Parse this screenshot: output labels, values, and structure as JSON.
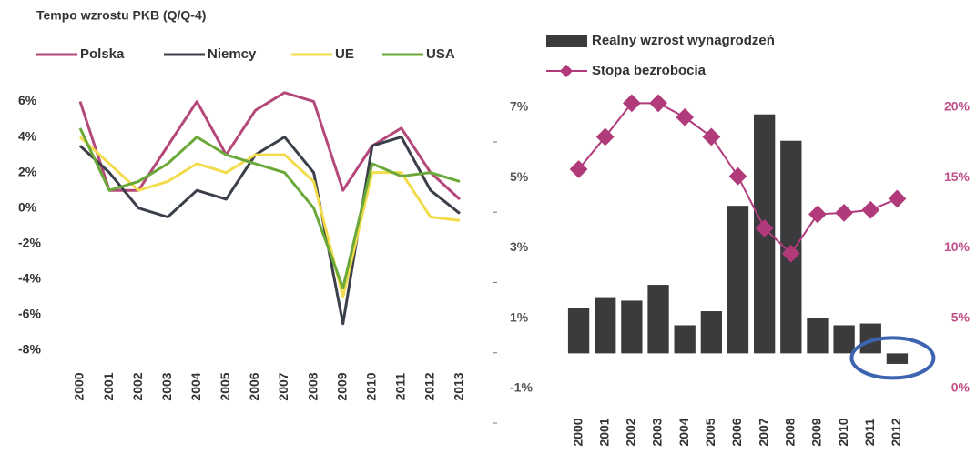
{
  "chart_data": [
    {
      "type": "line",
      "title": "Tempo wzrostu PKB (Q/Q-4)",
      "categories": [
        "2000",
        "2001",
        "2002",
        "2003",
        "2004",
        "2005",
        "2006",
        "2007",
        "2008",
        "2009",
        "2010",
        "2011",
        "2012",
        "2013"
      ],
      "series": [
        {
          "name": "Polska",
          "color": "#b5487a",
          "values": [
            6,
            1,
            1,
            3.5,
            6,
            3,
            5.5,
            6.5,
            6,
            1,
            3.5,
            4.5,
            2,
            0.5
          ]
        },
        {
          "name": "Niemcy",
          "color": "#3a3f4a",
          "values": [
            3.5,
            2,
            0,
            -0.5,
            1,
            0.5,
            3,
            4,
            2,
            -6.5,
            3.5,
            4,
            1,
            -0.3
          ]
        },
        {
          "name": "UE",
          "color": "#f2dc4c",
          "values": [
            4,
            2.5,
            1,
            1.5,
            2.5,
            2,
            3,
            3,
            1.5,
            -5,
            2,
            2,
            -0.5,
            -0.7
          ]
        },
        {
          "name": "USA",
          "color": "#6aa83a",
          "values": [
            4.5,
            1,
            1.5,
            2.5,
            4,
            3,
            2.5,
            2,
            0,
            -4.5,
            2.5,
            1.8,
            2,
            1.5
          ]
        }
      ],
      "ylim": [
        -8,
        7
      ],
      "yticks": [
        {
          "value": -8,
          "label": "-8%"
        },
        {
          "value": -6,
          "label": "-6%"
        },
        {
          "value": -4,
          "label": "-4%"
        },
        {
          "value": -2,
          "label": "-2%"
        },
        {
          "value": 0,
          "label": "0%"
        },
        {
          "value": 2,
          "label": "2%"
        },
        {
          "value": 4,
          "label": "4%"
        },
        {
          "value": 6,
          "label": "6%"
        }
      ]
    },
    {
      "type": "bar",
      "categories": [
        "2000",
        "2001",
        "2002",
        "2003",
        "2004",
        "2005",
        "2006",
        "2007",
        "2008",
        "2009",
        "2010",
        "2011",
        "2012"
      ],
      "series": [
        {
          "name": "Realny wzrost wynagrodzeń",
          "type": "bar",
          "color": "#3b3b3e",
          "values": [
            1.3,
            1.6,
            1.5,
            1.95,
            0.8,
            1.2,
            4.2,
            6.8,
            6.05,
            1.0,
            0.8,
            0.85,
            -0.3
          ]
        },
        {
          "name": "Stopa bezrobocia",
          "type": "line",
          "axis": "y2",
          "color": "#b03a7a",
          "values": [
            15.6,
            17.9,
            20.3,
            20.3,
            19.3,
            17.9,
            15.1,
            11.4,
            9.6,
            12.4,
            12.5,
            12.7,
            13.5
          ]
        }
      ],
      "ylim": [
        -1,
        7
      ],
      "yticks": [
        {
          "value": -1,
          "label": "-1%"
        },
        {
          "value": 1,
          "label": "1%"
        },
        {
          "value": 3,
          "label": "3%"
        },
        {
          "value": 5,
          "label": "5%"
        },
        {
          "value": 7,
          "label": "7%"
        }
      ],
      "y2lim": [
        0,
        20
      ],
      "y2ticks": [
        {
          "value": 0,
          "label": "0%"
        },
        {
          "value": 5,
          "label": "5%"
        },
        {
          "value": 10,
          "label": "10%"
        },
        {
          "value": 15,
          "label": "15%"
        },
        {
          "value": 20,
          "label": "20%"
        }
      ]
    }
  ]
}
